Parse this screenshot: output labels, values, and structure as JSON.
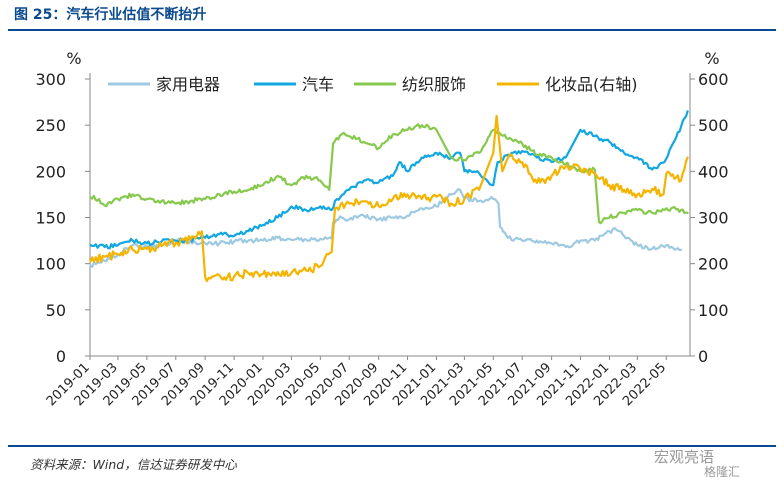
{
  "header": {
    "title": "图 25：汽车行业估值不断抬升"
  },
  "footer": {
    "source": "资料来源：Wind，信达证券研发中心"
  },
  "watermark": {
    "name": "宏观亮语",
    "sub": "格隆汇"
  },
  "colors": {
    "appliance": "#9ecae1",
    "auto": "#12a7e0",
    "textile": "#86c94c",
    "cosmetics": "#f4b400",
    "heading": "#0a4a8e"
  },
  "chart_data": {
    "type": "line",
    "title": "",
    "y_unit_left": "%",
    "y_unit_right": "%",
    "ylim_left": [
      0,
      300
    ],
    "ylim_right": [
      0,
      600
    ],
    "yticks_left": [
      "0",
      "50",
      "100",
      "150",
      "200",
      "250",
      "300"
    ],
    "yticks_right": [
      "0",
      "100",
      "200",
      "300",
      "400",
      "500",
      "600"
    ],
    "x_tick_labels": [
      "2019-01",
      "2019-03",
      "2019-05",
      "2019-07",
      "2019-09",
      "2019-11",
      "2020-01",
      "2020-03",
      "2020-05",
      "2020-07",
      "2020-09",
      "2020-11",
      "2021-01",
      "2021-03",
      "2021-05",
      "2021-07",
      "2021-09",
      "2021-11",
      "2022-01",
      "2022-03",
      "2022-05"
    ],
    "grid": false,
    "legend_position": "top",
    "series": [
      {
        "name": "家用电器",
        "axis": "left",
        "color_key": "appliance",
        "points": [
          [
            "2019-01-02",
            98
          ],
          [
            "2019-02-01",
            103
          ],
          [
            "2019-03-01",
            110
          ],
          [
            "2019-04-01",
            120
          ],
          [
            "2019-05-01",
            118
          ],
          [
            "2019-06-01",
            120
          ],
          [
            "2019-07-01",
            125
          ],
          [
            "2019-08-01",
            124
          ],
          [
            "2019-09-01",
            122
          ],
          [
            "2019-10-01",
            122
          ],
          [
            "2019-11-01",
            124
          ],
          [
            "2019-12-01",
            125
          ],
          [
            "2020-01-01",
            125
          ],
          [
            "2020-02-01",
            128
          ],
          [
            "2020-03-01",
            126
          ],
          [
            "2020-04-01",
            126
          ],
          [
            "2020-05-01",
            127
          ],
          [
            "2020-05-25",
            127
          ],
          [
            "2020-05-28",
            145
          ],
          [
            "2020-06-15",
            150
          ],
          [
            "2020-07-01",
            148
          ],
          [
            "2020-08-01",
            152
          ],
          [
            "2020-09-01",
            148
          ],
          [
            "2020-10-01",
            150
          ],
          [
            "2020-11-01",
            152
          ],
          [
            "2020-12-01",
            160
          ],
          [
            "2021-01-01",
            162
          ],
          [
            "2021-02-01",
            175
          ],
          [
            "2021-02-20",
            180
          ],
          [
            "2021-03-01",
            170
          ],
          [
            "2021-04-01",
            168
          ],
          [
            "2021-05-01",
            170
          ],
          [
            "2021-05-12",
            165
          ],
          [
            "2021-05-15",
            140
          ],
          [
            "2021-06-01",
            128
          ],
          [
            "2021-07-01",
            125
          ],
          [
            "2021-08-01",
            125
          ],
          [
            "2021-09-01",
            122
          ],
          [
            "2021-10-01",
            118
          ],
          [
            "2021-11-01",
            125
          ],
          [
            "2021-12-01",
            125
          ],
          [
            "2022-01-01",
            135
          ],
          [
            "2022-01-15",
            137
          ],
          [
            "2022-02-01",
            130
          ],
          [
            "2022-03-01",
            120
          ],
          [
            "2022-04-01",
            116
          ],
          [
            "2022-05-01",
            120
          ],
          [
            "2022-06-01",
            115
          ]
        ]
      },
      {
        "name": "汽车",
        "axis": "left",
        "color_key": "auto",
        "points": [
          [
            "2019-01-02",
            120
          ],
          [
            "2019-02-01",
            118
          ],
          [
            "2019-03-01",
            120
          ],
          [
            "2019-04-01",
            125
          ],
          [
            "2019-05-01",
            122
          ],
          [
            "2019-06-01",
            124
          ],
          [
            "2019-07-01",
            125
          ],
          [
            "2019-08-01",
            126
          ],
          [
            "2019-09-01",
            128
          ],
          [
            "2019-10-01",
            132
          ],
          [
            "2019-11-01",
            130
          ],
          [
            "2019-12-01",
            135
          ],
          [
            "2020-01-01",
            142
          ],
          [
            "2020-02-01",
            150
          ],
          [
            "2020-03-01",
            162
          ],
          [
            "2020-04-01",
            158
          ],
          [
            "2020-05-01",
            162
          ],
          [
            "2020-05-25",
            158
          ],
          [
            "2020-06-01",
            168
          ],
          [
            "2020-07-01",
            180
          ],
          [
            "2020-08-01",
            190
          ],
          [
            "2020-09-01",
            188
          ],
          [
            "2020-10-01",
            195
          ],
          [
            "2020-10-15",
            210
          ],
          [
            "2020-11-01",
            200
          ],
          [
            "2020-12-01",
            215
          ],
          [
            "2021-01-01",
            220
          ],
          [
            "2021-02-01",
            215
          ],
          [
            "2021-02-20",
            220
          ],
          [
            "2021-03-01",
            200
          ],
          [
            "2021-04-01",
            198
          ],
          [
            "2021-05-01",
            185
          ],
          [
            "2021-05-10",
            210
          ],
          [
            "2021-06-01",
            218
          ],
          [
            "2021-07-01",
            222
          ],
          [
            "2021-08-01",
            215
          ],
          [
            "2021-09-01",
            210
          ],
          [
            "2021-10-01",
            215
          ],
          [
            "2021-11-01",
            245
          ],
          [
            "2021-12-01",
            238
          ],
          [
            "2022-01-01",
            232
          ],
          [
            "2022-02-01",
            220
          ],
          [
            "2022-03-01",
            215
          ],
          [
            "2022-04-01",
            202
          ],
          [
            "2022-04-27",
            210
          ],
          [
            "2022-05-15",
            230
          ],
          [
            "2022-06-01",
            248
          ],
          [
            "2022-06-15",
            265
          ]
        ]
      },
      {
        "name": "纺织服饰",
        "axis": "left",
        "color_key": "textile",
        "points": [
          [
            "2019-01-02",
            172
          ],
          [
            "2019-01-20",
            170
          ],
          [
            "2019-02-01",
            163
          ],
          [
            "2019-03-01",
            170
          ],
          [
            "2019-04-01",
            175
          ],
          [
            "2019-05-01",
            170
          ],
          [
            "2019-06-01",
            168
          ],
          [
            "2019-07-01",
            165
          ],
          [
            "2019-08-01",
            168
          ],
          [
            "2019-09-01",
            170
          ],
          [
            "2019-10-01",
            175
          ],
          [
            "2019-11-01",
            178
          ],
          [
            "2019-12-01",
            180
          ],
          [
            "2020-01-01",
            185
          ],
          [
            "2020-02-01",
            195
          ],
          [
            "2020-03-01",
            185
          ],
          [
            "2020-04-01",
            195
          ],
          [
            "2020-05-01",
            190
          ],
          [
            "2020-05-20",
            180
          ],
          [
            "2020-05-28",
            230
          ],
          [
            "2020-06-15",
            240
          ],
          [
            "2020-07-01",
            238
          ],
          [
            "2020-08-01",
            232
          ],
          [
            "2020-09-01",
            225
          ],
          [
            "2020-10-01",
            240
          ],
          [
            "2020-11-01",
            245
          ],
          [
            "2020-12-01",
            250
          ],
          [
            "2021-01-01",
            245
          ],
          [
            "2021-02-01",
            215
          ],
          [
            "2021-03-01",
            212
          ],
          [
            "2021-04-01",
            220
          ],
          [
            "2021-05-01",
            245
          ],
          [
            "2021-06-01",
            235
          ],
          [
            "2021-07-01",
            230
          ],
          [
            "2021-08-01",
            218
          ],
          [
            "2021-09-01",
            215
          ],
          [
            "2021-10-01",
            208
          ],
          [
            "2021-11-01",
            200
          ],
          [
            "2021-12-01",
            202
          ],
          [
            "2021-12-10",
            145
          ],
          [
            "2022-01-01",
            150
          ],
          [
            "2022-02-01",
            155
          ],
          [
            "2022-03-01",
            158
          ],
          [
            "2022-04-01",
            155
          ],
          [
            "2022-05-01",
            160
          ],
          [
            "2022-06-01",
            158
          ],
          [
            "2022-06-15",
            155
          ]
        ]
      },
      {
        "name": "化妆品(右轴)",
        "axis": "right",
        "color_key": "cosmetics",
        "points": [
          [
            "2019-01-02",
            205
          ],
          [
            "2019-02-01",
            215
          ],
          [
            "2019-03-01",
            220
          ],
          [
            "2019-04-01",
            230
          ],
          [
            "2019-05-01",
            232
          ],
          [
            "2019-06-01",
            238
          ],
          [
            "2019-07-01",
            245
          ],
          [
            "2019-08-01",
            252
          ],
          [
            "2019-08-25",
            270
          ],
          [
            "2019-09-01",
            170
          ],
          [
            "2019-10-01",
            175
          ],
          [
            "2019-11-01",
            172
          ],
          [
            "2019-12-01",
            180
          ],
          [
            "2020-01-01",
            178
          ],
          [
            "2020-02-01",
            182
          ],
          [
            "2020-03-01",
            180
          ],
          [
            "2020-04-01",
            185
          ],
          [
            "2020-05-01",
            195
          ],
          [
            "2020-05-25",
            225
          ],
          [
            "2020-06-01",
            320
          ],
          [
            "2020-07-01",
            330
          ],
          [
            "2020-08-01",
            335
          ],
          [
            "2020-09-01",
            325
          ],
          [
            "2020-10-01",
            340
          ],
          [
            "2020-11-01",
            350
          ],
          [
            "2020-12-01",
            340
          ],
          [
            "2021-01-01",
            345
          ],
          [
            "2021-02-01",
            330
          ],
          [
            "2021-03-01",
            340
          ],
          [
            "2021-04-01",
            360
          ],
          [
            "2021-05-01",
            440
          ],
          [
            "2021-05-08",
            520
          ],
          [
            "2021-05-20",
            400
          ],
          [
            "2021-06-01",
            430
          ],
          [
            "2021-07-01",
            420
          ],
          [
            "2021-08-01",
            375
          ],
          [
            "2021-09-01",
            390
          ],
          [
            "2021-10-01",
            410
          ],
          [
            "2021-11-01",
            405
          ],
          [
            "2021-12-01",
            395
          ],
          [
            "2022-01-01",
            370
          ],
          [
            "2022-02-01",
            360
          ],
          [
            "2022-03-01",
            350
          ],
          [
            "2022-04-01",
            362
          ],
          [
            "2022-04-25",
            350
          ],
          [
            "2022-05-01",
            395
          ],
          [
            "2022-06-01",
            380
          ],
          [
            "2022-06-15",
            430
          ]
        ]
      }
    ]
  }
}
